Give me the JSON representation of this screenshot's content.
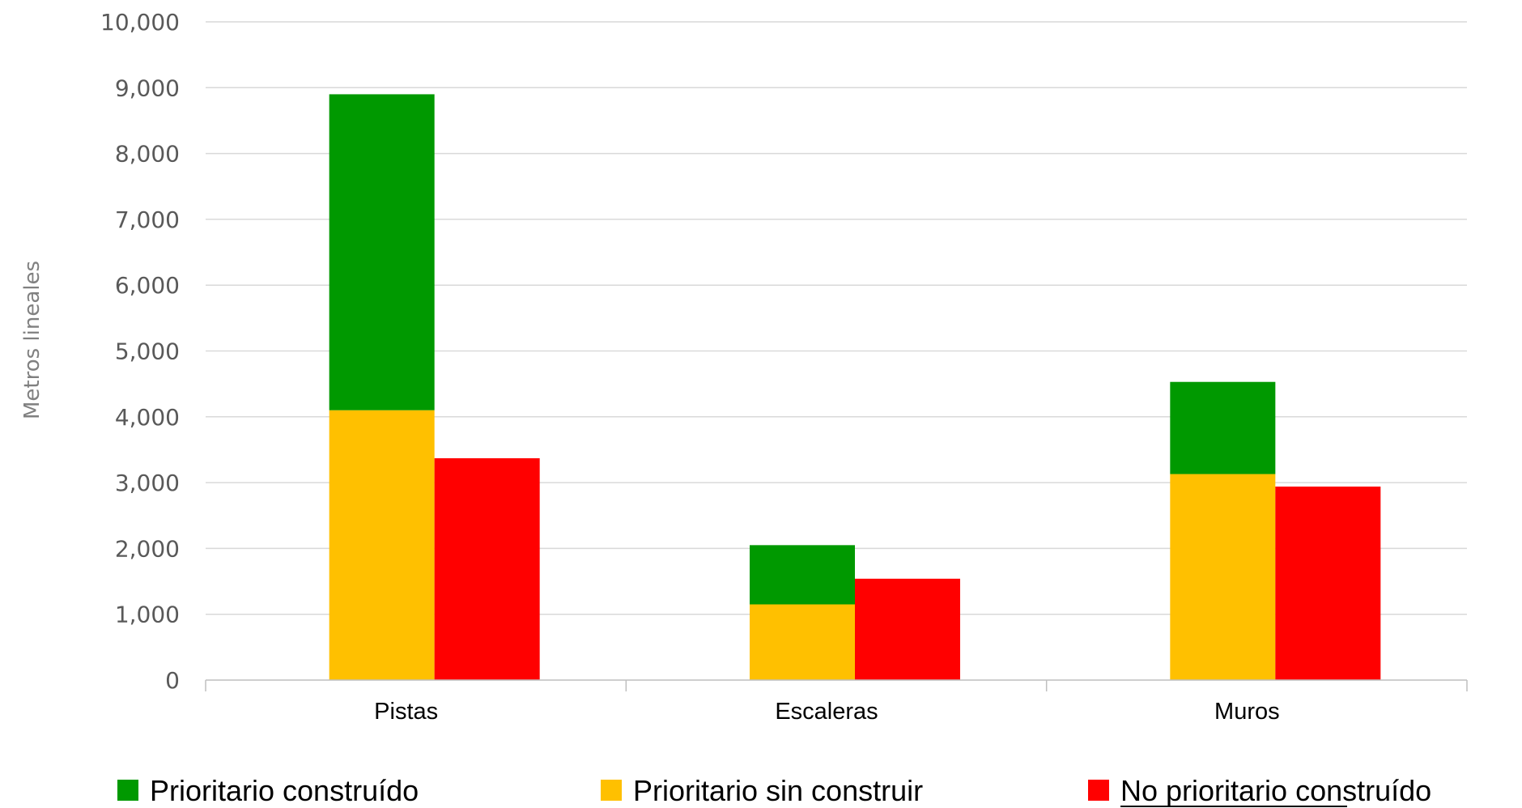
{
  "chart_data": {
    "type": "bar",
    "stacked": true,
    "categories": [
      "Pistas",
      "Escaleras",
      "Muros"
    ],
    "ylabel": "Metros lineales",
    "xlabel": "",
    "ylim": [
      0,
      10000
    ],
    "yticks": [
      "0",
      "1,000",
      "2,000",
      "3,000",
      "4,000",
      "5,000",
      "6,000",
      "7,000",
      "8,000",
      "9,000",
      "10,000"
    ],
    "ytick_values": [
      0,
      1000,
      2000,
      3000,
      4000,
      5000,
      6000,
      7000,
      8000,
      9000,
      10000
    ],
    "grid": true,
    "legend_position": "bottom",
    "series": [
      {
        "name": "Prioritario construído",
        "stack": "prioritario",
        "values": [
          4800,
          900,
          1400
        ],
        "color": "#009900"
      },
      {
        "name": "Prioritario sin construir",
        "stack": "prioritario",
        "values": [
          4100,
          1150,
          3130
        ],
        "color": "#FFC000"
      },
      {
        "name": "No prioritario construído",
        "stack": "no-prioritario",
        "values": [
          3370,
          1540,
          2940
        ],
        "color": "#FF0000"
      }
    ],
    "stack_order": [
      "Prioritario sin construir",
      "Prioritario construído"
    ],
    "colors": {
      "grid": "#D9D9D9",
      "axis": "#BFBFBF",
      "tick_text": "#595959",
      "axis_title": "#808080"
    }
  }
}
